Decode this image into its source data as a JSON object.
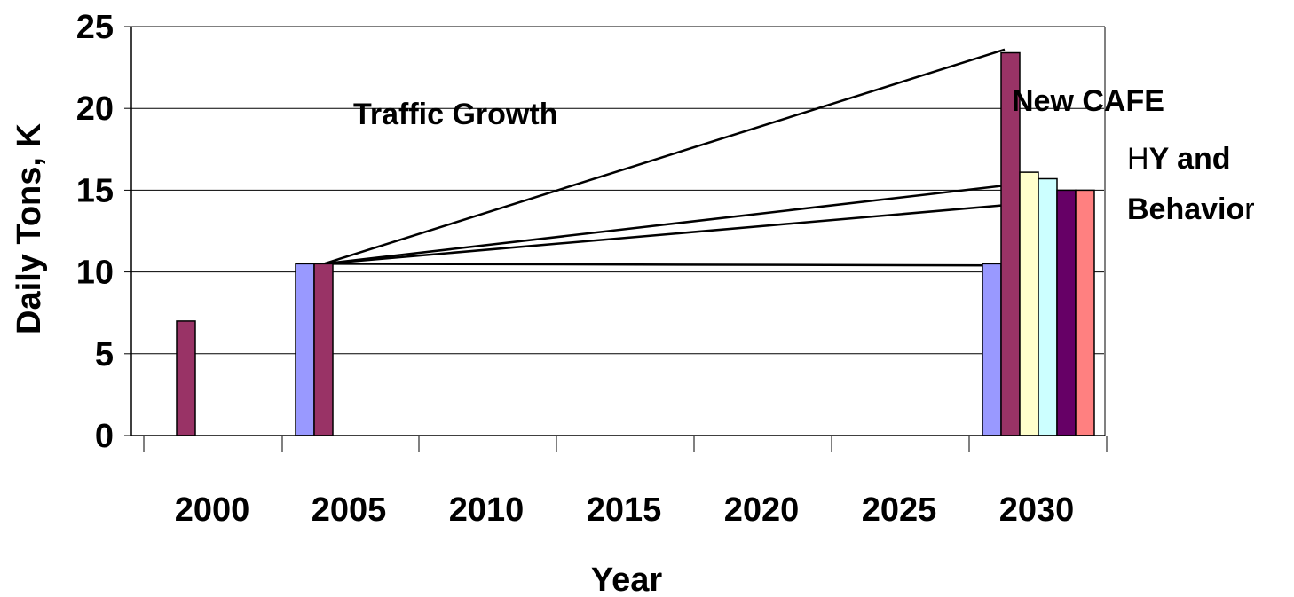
{
  "chart_data": {
    "type": "bar",
    "xlabel": "Year",
    "ylabel": "Daily Tons, K",
    "ylim": [
      0,
      25
    ],
    "yticks": [
      "0",
      "5",
      "10",
      "15",
      "20",
      "25"
    ],
    "x_tick_labels": [
      "2000",
      "2005",
      "2010",
      "2015",
      "2020",
      "2025",
      "2030"
    ],
    "grid": true,
    "bars": [
      {
        "year": 2000,
        "value": 7,
        "color": "#993366"
      },
      {
        "year": 2003,
        "value": 10.5,
        "color": "#9999FF"
      },
      {
        "year": 2003,
        "value": 10.5,
        "color": "#993366"
      },
      {
        "year": 2030,
        "value": 10.5,
        "color": "#9999FF"
      },
      {
        "year": 2030,
        "value": 23.4,
        "color": "#993366"
      },
      {
        "year": 2030,
        "value": 16.1,
        "color": "#FFFFCC"
      },
      {
        "year": 2030,
        "value": 15.7,
        "color": "#CCFFFF"
      },
      {
        "year": 2030,
        "value": 15,
        "color": "#660066"
      },
      {
        "year": 2030,
        "value": 15,
        "color": "#FF8080"
      }
    ],
    "trend_lines": [
      {
        "from": [
          2003,
          10.5
        ],
        "to": [
          2030,
          23.6
        ]
      },
      {
        "from": [
          2003,
          10.5
        ],
        "to": [
          2030,
          15.5
        ]
      },
      {
        "from": [
          2003,
          10.5
        ],
        "to": [
          2030,
          14.4
        ]
      },
      {
        "from": [
          2003,
          10.5
        ],
        "to": [
          2030,
          10.4
        ]
      }
    ],
    "annotations": {
      "traffic_growth": "Traffic Growth",
      "new_cafe": "New CAFE",
      "hy_and_line1_prefix": "H",
      "hy_and_line1_rest": "Y and",
      "hy_and_line2_main": "Behavio",
      "hy_and_line2_suffix": "r"
    }
  }
}
